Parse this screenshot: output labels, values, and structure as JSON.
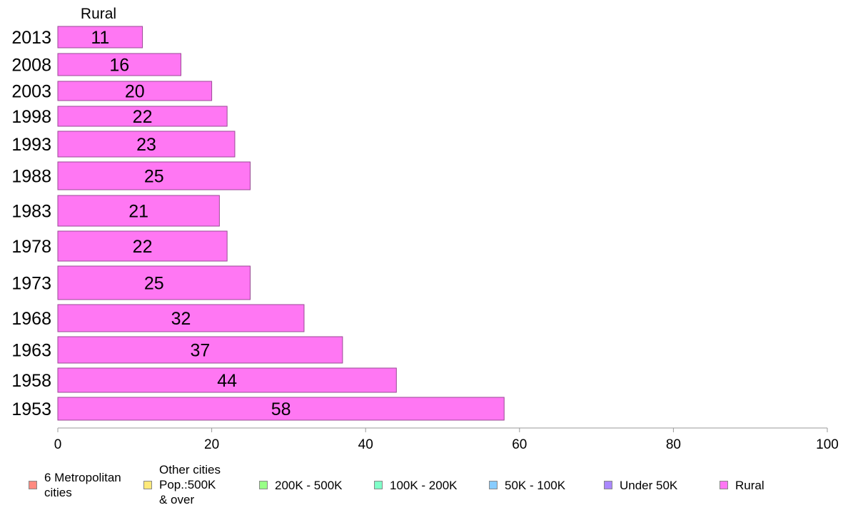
{
  "chart_data": {
    "type": "bar",
    "orientation": "horizontal",
    "title": "",
    "panel_title": "Rural",
    "xlabel": "",
    "ylabel": "",
    "xlim": [
      0,
      100
    ],
    "x_ticks": [
      0,
      20,
      40,
      60,
      80,
      100
    ],
    "grid": false,
    "categories": [
      "2013",
      "2008",
      "2003",
      "1998",
      "1993",
      "1988",
      "1983",
      "1978",
      "1973",
      "1968",
      "1963",
      "1958",
      "1953"
    ],
    "series": [
      {
        "name": "Rural",
        "color": "#ff77f3",
        "values": [
          11,
          16,
          20,
          22,
          23,
          25,
          21,
          22,
          25,
          32,
          37,
          44,
          58
        ]
      }
    ],
    "legend_position": "bottom",
    "legend": [
      {
        "label": "6 Metropolitan\n cities",
        "color": "#ff8a80"
      },
      {
        "label": "Other cities\nPop.:500K\n & over",
        "color": "#ffe97a"
      },
      {
        "label": "200K - 500K",
        "color": "#99ff88"
      },
      {
        "label": "100K - 200K",
        "color": "#80ffc8"
      },
      {
        "label": "50K - 100K",
        "color": "#88ccff"
      },
      {
        "label": "Under 50K",
        "color": "#aa88ff"
      },
      {
        "label": "Rural",
        "color": "#ff77f3"
      }
    ]
  }
}
